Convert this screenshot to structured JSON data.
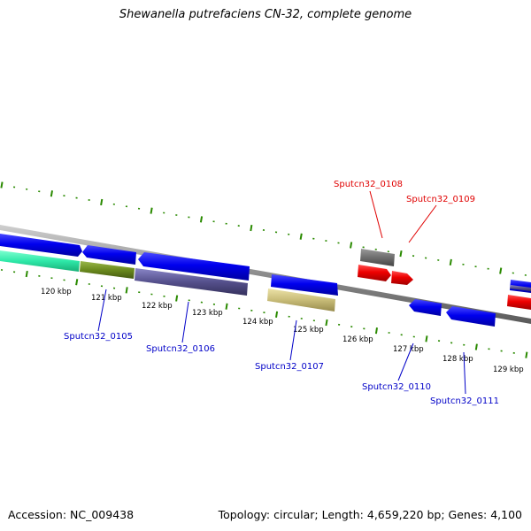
{
  "title": "Shewanella putrefaciens CN-32, complete genome",
  "footer": {
    "accession": "Accession: NC_009438",
    "summary": "Topology: circular; Length: 4,659,220 bp; Genes: 4,100"
  },
  "scale_labels": [
    "120 kbp",
    "121 kbp",
    "122 kbp",
    "123 kbp",
    "124 kbp",
    "125 kbp",
    "126 kbp",
    "127 kbp",
    "128 kbp",
    "129 kbp"
  ],
  "gene_labels": [
    {
      "text": "Sputcn32_0105",
      "color": "#0000c8"
    },
    {
      "text": "Sputcn32_0106",
      "color": "#0000c8"
    },
    {
      "text": "Sputcn32_0107",
      "color": "#0000c8"
    },
    {
      "text": "Sputcn32_0108",
      "color": "#e00000"
    },
    {
      "text": "Sputcn32_0109",
      "color": "#e00000"
    },
    {
      "text": "Sputcn32_0110",
      "color": "#0000c8"
    },
    {
      "text": "Sputcn32_0111",
      "color": "#0000c8"
    }
  ],
  "colors": {
    "cds_forward": "#0000ee",
    "cds_reverse": "#ee0000",
    "backbone": "#8c8c8c",
    "ticks": "#2a8a00",
    "rrna": "#2ee8a8",
    "trna": "#6b8a1e",
    "misc_feature": "#55508c",
    "other": "#c8bc78",
    "pseudogene": "#6e6e6e"
  }
}
